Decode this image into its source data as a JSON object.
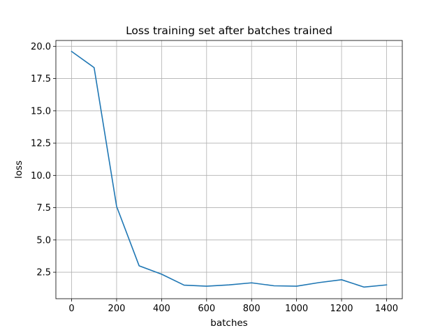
{
  "chart_data": {
    "type": "line",
    "title": "Loss training set after batches trained",
    "xlabel": "batches",
    "ylabel": "loss",
    "xlim": [
      -70,
      1470
    ],
    "ylim": [
      0.45,
      20.45
    ],
    "xticks": [
      0,
      200,
      400,
      600,
      800,
      1000,
      1200,
      1400
    ],
    "yticks": [
      2.5,
      5.0,
      7.5,
      10.0,
      12.5,
      15.0,
      17.5,
      20.0
    ],
    "ytick_labels": [
      "2.5",
      "5.0",
      "7.5",
      "10.0",
      "12.5",
      "15.0",
      "17.5",
      "20.0"
    ],
    "grid": true,
    "series": [
      {
        "color": "#1f77b4",
        "x": [
          0,
          100,
          200,
          300,
          400,
          500,
          600,
          700,
          800,
          900,
          1000,
          1100,
          1200,
          1300,
          1400
        ],
        "y": [
          19.6,
          18.35,
          7.6,
          3.0,
          2.35,
          1.5,
          1.42,
          1.52,
          1.68,
          1.45,
          1.42,
          1.7,
          1.92,
          1.35,
          1.52
        ]
      }
    ]
  }
}
